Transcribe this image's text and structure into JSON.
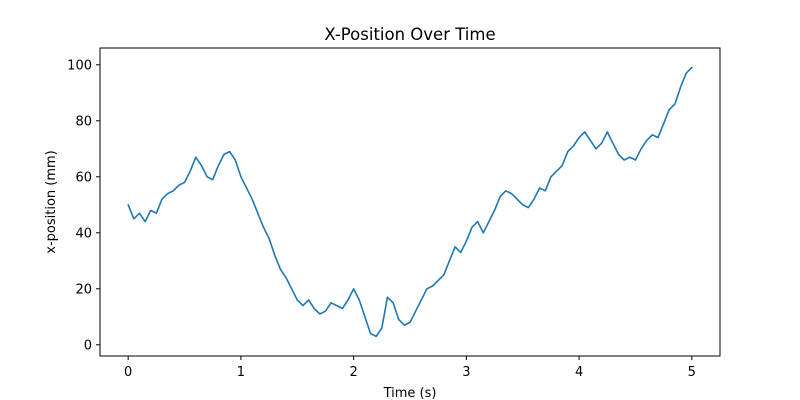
{
  "chart_data": {
    "type": "line",
    "title": "X-Position Over Time",
    "xlabel": "Time (s)",
    "ylabel": "x-position (mm)",
    "xlim": [
      -0.25,
      5.25
    ],
    "ylim": [
      -4,
      106
    ],
    "xticks": [
      0,
      1,
      2,
      3,
      4,
      5
    ],
    "yticks": [
      0,
      20,
      40,
      60,
      80,
      100
    ],
    "grid": false,
    "series": [
      {
        "color": "#1f77b4",
        "x": [
          0.0,
          0.05,
          0.1,
          0.15,
          0.2,
          0.25,
          0.3,
          0.35,
          0.4,
          0.45,
          0.5,
          0.55,
          0.6,
          0.65,
          0.7,
          0.75,
          0.8,
          0.85,
          0.9,
          0.95,
          1.0,
          1.05,
          1.1,
          1.15,
          1.2,
          1.25,
          1.3,
          1.35,
          1.4,
          1.45,
          1.5,
          1.55,
          1.6,
          1.65,
          1.7,
          1.75,
          1.8,
          1.85,
          1.9,
          1.95,
          2.0,
          2.05,
          2.1,
          2.15,
          2.2,
          2.25,
          2.3,
          2.35,
          2.4,
          2.45,
          2.5,
          2.55,
          2.6,
          2.65,
          2.7,
          2.75,
          2.8,
          2.85,
          2.9,
          2.95,
          3.0,
          3.05,
          3.1,
          3.15,
          3.2,
          3.25,
          3.3,
          3.35,
          3.4,
          3.45,
          3.5,
          3.55,
          3.6,
          3.65,
          3.7,
          3.75,
          3.8,
          3.85,
          3.9,
          3.95,
          4.0,
          4.05,
          4.1,
          4.15,
          4.2,
          4.25,
          4.3,
          4.35,
          4.4,
          4.45,
          4.5,
          4.55,
          4.6,
          4.65,
          4.7,
          4.75,
          4.8,
          4.85,
          4.9,
          4.95,
          5.0
        ],
        "values": [
          50,
          45,
          47,
          44,
          48,
          47,
          52,
          54,
          55,
          57,
          58,
          62,
          67,
          64,
          60,
          59,
          64,
          68,
          69,
          66,
          60,
          56,
          52,
          47,
          42,
          38,
          32,
          27,
          24,
          20,
          16,
          14,
          16,
          13,
          11,
          12,
          15,
          14,
          13,
          16,
          20,
          16,
          10,
          4,
          3,
          6,
          17,
          15,
          9,
          7,
          8,
          12,
          16,
          20,
          21,
          23,
          25,
          30,
          35,
          33,
          37,
          42,
          44,
          40,
          44,
          48,
          53,
          55,
          54,
          52,
          50,
          49,
          52,
          56,
          55,
          60,
          62,
          64,
          69,
          71,
          74,
          76,
          73,
          70,
          72,
          76,
          72,
          68,
          66,
          67,
          66,
          70,
          73,
          75,
          74,
          79,
          84,
          86,
          92,
          97,
          99
        ]
      }
    ]
  }
}
